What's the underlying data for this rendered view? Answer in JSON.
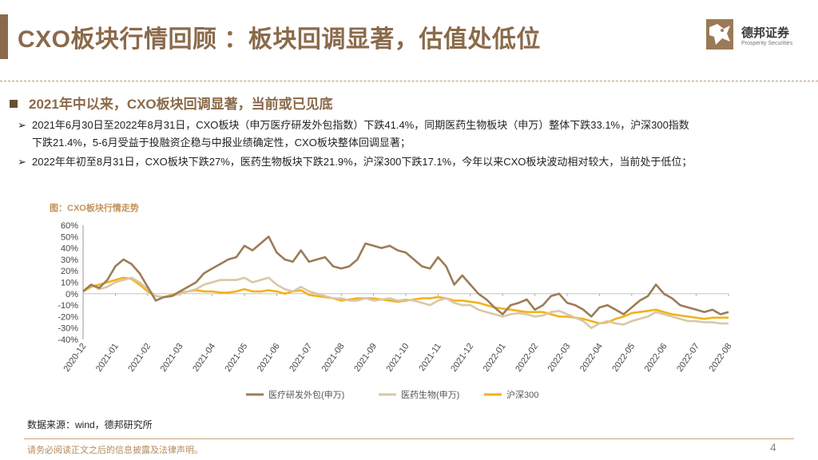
{
  "header": {
    "title": "CXO板块行情回顾 ：板块回调显著，估值处低位",
    "logo_cn": "德邦证券",
    "logo_en": "Prosperity Securities",
    "accent_color": "#8a6a4a"
  },
  "section": {
    "heading": "2021年中以来，CXO板块回调显著，当前或已见底",
    "bullets": [
      {
        "line1": "2021年6月30日至2022年8月31日，CXO板块（申万医疗研发外包指数）下跌41.4%，同期医药生物板块（申万）整体下跌33.1%，沪深300指数",
        "line2": "下跌21.4%，5-6月受益于投融资企稳与中报业绩确定性，CXO板块整体回调显著；"
      },
      {
        "line1": "2022年年初至8月31日，CXO板块下跌27%，医药生物板块下跌21.9%，沪深300下跌17.1%，今年以来CXO板块波动相对较大，当前处于低位；"
      }
    ]
  },
  "chart_caption": "图：CXO板块行情走势",
  "chart_data": {
    "type": "line",
    "title": "CXO板块行情走势",
    "ylim": [
      -40,
      60
    ],
    "yticks": [
      "60%",
      "50%",
      "40%",
      "30%",
      "20%",
      "10%",
      "0%",
      "-10%",
      "-20%",
      "-30%",
      "-40%"
    ],
    "ytick_values": [
      60,
      50,
      40,
      30,
      20,
      10,
      0,
      -10,
      -20,
      -30,
      -40
    ],
    "x_ticks": [
      "2020-12",
      "2021-01",
      "2021-02",
      "2021-03",
      "2021-04",
      "2021-05",
      "2021-06",
      "2021-07",
      "2021-08",
      "2021-09",
      "2021-10",
      "2021-11",
      "2021-12",
      "2022-01",
      "2022-02",
      "2022-03",
      "2022-04",
      "2022-05",
      "2022-06",
      "2022-07",
      "2022-08"
    ],
    "x_tick_index": [
      0,
      4,
      8,
      12,
      16,
      20,
      24,
      28,
      32,
      36,
      40,
      44,
      48,
      52,
      56,
      60,
      64,
      68,
      72,
      76,
      80
    ],
    "x_max_index": 80,
    "series": [
      {
        "name": "医疗研发外包(申万)",
        "color": "#9c7c57",
        "values": [
          2,
          8,
          5,
          12,
          24,
          30,
          26,
          18,
          6,
          -6,
          -3,
          -2,
          2,
          6,
          10,
          18,
          22,
          26,
          30,
          32,
          42,
          38,
          44,
          50,
          36,
          30,
          28,
          38,
          28,
          30,
          32,
          24,
          22,
          24,
          30,
          44,
          42,
          40,
          42,
          38,
          36,
          30,
          24,
          22,
          32,
          24,
          8,
          16,
          8,
          0,
          -5,
          -12,
          -18,
          -10,
          -8,
          -5,
          -14,
          -10,
          -2,
          0,
          -8,
          -10,
          -14,
          -20,
          -12,
          -10,
          -14,
          -18,
          -12,
          -6,
          -2,
          8,
          0,
          -4,
          -10,
          -12,
          -14,
          -16,
          -14,
          -18,
          -16
        ]
      },
      {
        "name": "医药生物(申万)",
        "color": "#d9c7a6",
        "values": [
          2,
          8,
          4,
          6,
          10,
          12,
          14,
          10,
          4,
          -2,
          -3,
          -2,
          0,
          2,
          4,
          8,
          10,
          12,
          12,
          12,
          14,
          10,
          12,
          14,
          8,
          4,
          2,
          6,
          2,
          0,
          -2,
          -4,
          -4,
          -6,
          -6,
          -4,
          -6,
          -5,
          -4,
          -6,
          -5,
          -6,
          -8,
          -10,
          -6,
          -4,
          -8,
          -10,
          -10,
          -14,
          -16,
          -18,
          -20,
          -18,
          -17,
          -18,
          -20,
          -19,
          -16,
          -15,
          -18,
          -21,
          -24,
          -30,
          -26,
          -24,
          -26,
          -27,
          -24,
          -22,
          -20,
          -16,
          -18,
          -20,
          -22,
          -24,
          -24,
          -25,
          -25,
          -26,
          -26
        ]
      },
      {
        "name": "沪深300",
        "color": "#f2b21b",
        "values": [
          2,
          6,
          8,
          10,
          12,
          14,
          13,
          8,
          2,
          -2,
          -3,
          -1,
          1,
          2,
          3,
          2,
          2,
          1,
          1,
          2,
          4,
          2,
          2,
          3,
          2,
          0,
          2,
          3,
          -1,
          -2,
          -3,
          -4,
          -6,
          -5,
          -4,
          -4,
          -4,
          -5,
          -6,
          -7,
          -6,
          -5,
          -4,
          -4,
          -3,
          -4,
          -6,
          -6,
          -7,
          -8,
          -10,
          -12,
          -13,
          -14,
          -15,
          -16,
          -16,
          -16,
          -18,
          -20,
          -20,
          -21,
          -22,
          -24,
          -26,
          -25,
          -22,
          -20,
          -17,
          -16,
          -15,
          -14,
          -16,
          -18,
          -19,
          -20,
          -21,
          -22,
          -21,
          -21,
          -21
        ]
      }
    ]
  },
  "source": "数据来源：wind，德邦研究所",
  "footer": {
    "disclaimer": "请务必阅读正文之后的信息披露及法律声明。",
    "page": "4"
  }
}
